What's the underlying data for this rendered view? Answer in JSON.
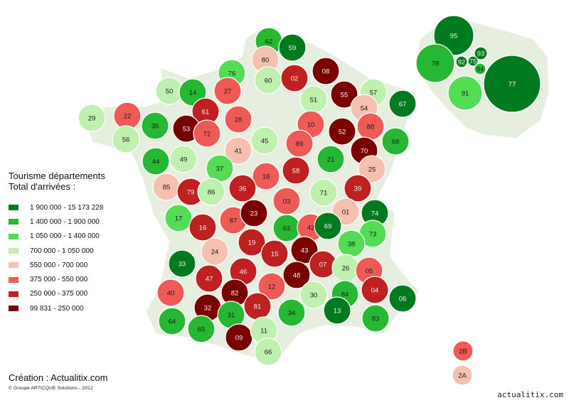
{
  "legend": {
    "title_line1": "Tourisme départements",
    "title_line2": "Total d'arrivées :",
    "classes": [
      {
        "label": "1 900 000 - 15 173 228",
        "color": "#007a1e"
      },
      {
        "label": "1 400 000 - 1 900 000",
        "color": "#27b833"
      },
      {
        "label": "1 050 000 - 1 400 000",
        "color": "#55dc55"
      },
      {
        "label": "700 000 - 1 050 000",
        "color": "#bff0b0"
      },
      {
        "label": "550 000 - 700 000",
        "color": "#f6c0b0"
      },
      {
        "label": "375 000 - 550 000",
        "color": "#ee5a55"
      },
      {
        "label": "250 000 - 375 000",
        "color": "#bf2022"
      },
      {
        "label": "99 831 - 250 000",
        "color": "#7a0000"
      }
    ]
  },
  "credits": {
    "creation": "Création : Actualitix.com",
    "copyright": "© Groupe ARTICQUE Solutions - 2012"
  },
  "watermark": "actualitix.com",
  "departments": [
    {
      "code": "62",
      "class": 1
    },
    {
      "code": "59",
      "class": 0
    },
    {
      "code": "80",
      "class": 4
    },
    {
      "code": "76",
      "class": 2
    },
    {
      "code": "60",
      "class": 3
    },
    {
      "code": "02",
      "class": 6
    },
    {
      "code": "08",
      "class": 7
    },
    {
      "code": "50",
      "class": 3
    },
    {
      "code": "14",
      "class": 1
    },
    {
      "code": "27",
      "class": 5
    },
    {
      "code": "51",
      "class": 3
    },
    {
      "code": "55",
      "class": 7
    },
    {
      "code": "57",
      "class": 3
    },
    {
      "code": "67",
      "class": 0
    },
    {
      "code": "29",
      "class": 3
    },
    {
      "code": "22",
      "class": 5
    },
    {
      "code": "61",
      "class": 6
    },
    {
      "code": "28",
      "class": 5
    },
    {
      "code": "35",
      "class": 1
    },
    {
      "code": "53",
      "class": 7
    },
    {
      "code": "72",
      "class": 5
    },
    {
      "code": "10",
      "class": 5
    },
    {
      "code": "52",
      "class": 7
    },
    {
      "code": "54",
      "class": 4
    },
    {
      "code": "88",
      "class": 5
    },
    {
      "code": "56",
      "class": 3
    },
    {
      "code": "41",
      "class": 4
    },
    {
      "code": "45",
      "class": 3
    },
    {
      "code": "89",
      "class": 5
    },
    {
      "code": "70",
      "class": 7
    },
    {
      "code": "68",
      "class": 1
    },
    {
      "code": "44",
      "class": 1
    },
    {
      "code": "49",
      "class": 3
    },
    {
      "code": "37",
      "class": 2
    },
    {
      "code": "21",
      "class": 1
    },
    {
      "code": "25",
      "class": 4
    },
    {
      "code": "18",
      "class": 5
    },
    {
      "code": "58",
      "class": 6
    },
    {
      "code": "85",
      "class": 4
    },
    {
      "code": "79",
      "class": 6
    },
    {
      "code": "86",
      "class": 3
    },
    {
      "code": "36",
      "class": 6
    },
    {
      "code": "71",
      "class": 3
    },
    {
      "code": "39",
      "class": 6
    },
    {
      "code": "03",
      "class": 5
    },
    {
      "code": "01",
      "class": 4
    },
    {
      "code": "74",
      "class": 0
    },
    {
      "code": "17",
      "class": 2
    },
    {
      "code": "16",
      "class": 6
    },
    {
      "code": "87",
      "class": 5
    },
    {
      "code": "23",
      "class": 7
    },
    {
      "code": "63",
      "class": 1
    },
    {
      "code": "42",
      "class": 5
    },
    {
      "code": "69",
      "class": 0
    },
    {
      "code": "73",
      "class": 2
    },
    {
      "code": "24",
      "class": 4
    },
    {
      "code": "19",
      "class": 6
    },
    {
      "code": "38",
      "class": 2
    },
    {
      "code": "33",
      "class": 0
    },
    {
      "code": "15",
      "class": 6
    },
    {
      "code": "43",
      "class": 7
    },
    {
      "code": "07",
      "class": 6
    },
    {
      "code": "26",
      "class": 3
    },
    {
      "code": "05",
      "class": 5
    },
    {
      "code": "47",
      "class": 6
    },
    {
      "code": "46",
      "class": 6
    },
    {
      "code": "48",
      "class": 7
    },
    {
      "code": "40",
      "class": 5
    },
    {
      "code": "12",
      "class": 5
    },
    {
      "code": "84",
      "class": 1
    },
    {
      "code": "04",
      "class": 6
    },
    {
      "code": "06",
      "class": 0
    },
    {
      "code": "82",
      "class": 7
    },
    {
      "code": "30",
      "class": 3
    },
    {
      "code": "13",
      "class": 0
    },
    {
      "code": "83",
      "class": 1
    },
    {
      "code": "32",
      "class": 7
    },
    {
      "code": "81",
      "class": 6
    },
    {
      "code": "34",
      "class": 1
    },
    {
      "code": "64",
      "class": 1
    },
    {
      "code": "65",
      "class": 1
    },
    {
      "code": "31",
      "class": 1
    },
    {
      "code": "09",
      "class": 7
    },
    {
      "code": "11",
      "class": 3
    },
    {
      "code": "66",
      "class": 3
    },
    {
      "code": "2B",
      "class": 5
    },
    {
      "code": "2A",
      "class": 4
    },
    {
      "code": "95",
      "class": 0
    },
    {
      "code": "93",
      "class": 0
    },
    {
      "code": "78",
      "class": 1
    },
    {
      "code": "92",
      "class": 0
    },
    {
      "code": "75",
      "class": 0
    },
    {
      "code": "94",
      "class": 1
    },
    {
      "code": "77",
      "class": 0
    },
    {
      "code": "91",
      "class": 2
    }
  ]
}
